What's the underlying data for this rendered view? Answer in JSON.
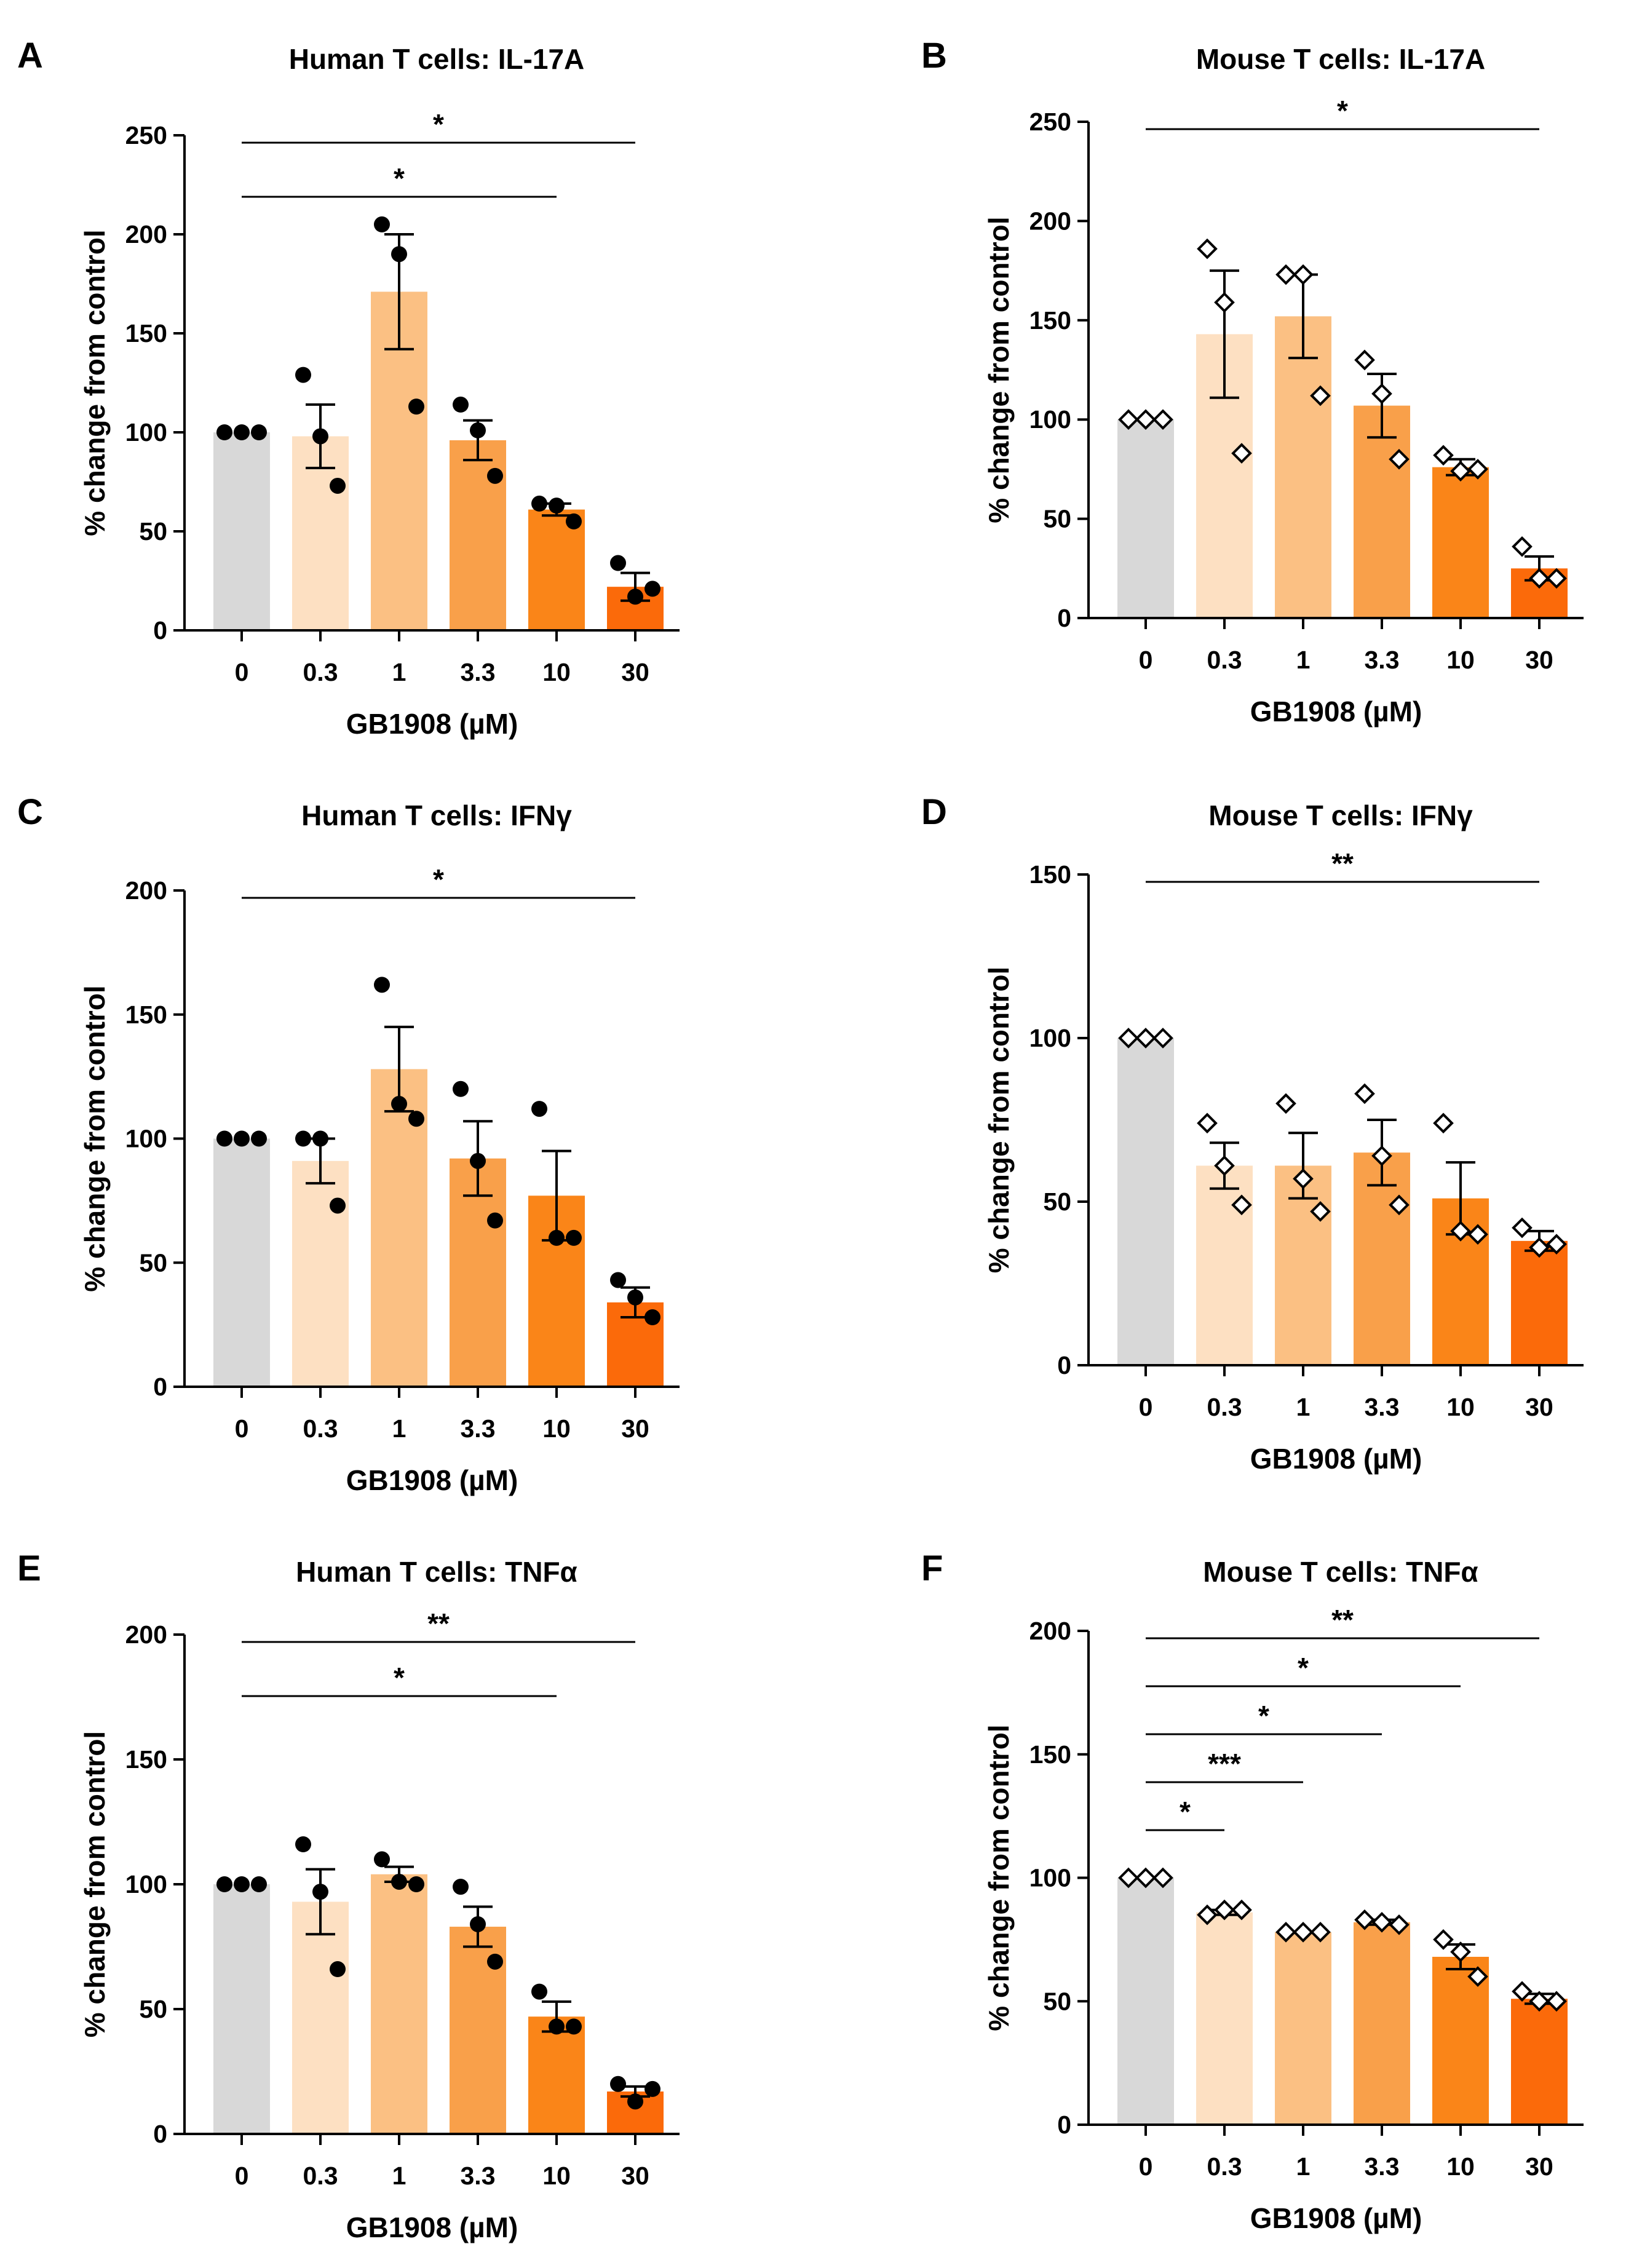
{
  "figure": {
    "xlabel": "GB1908 (µM)",
    "ylabel": "% change from control",
    "colors": [
      "#d8d8d8",
      "#fde0c2",
      "#fbc083",
      "#f9a04a",
      "#fa8518",
      "#fb6a0a"
    ],
    "marker_colors": {
      "filled": "#000000",
      "open_fill": "#ffffff",
      "open_stroke": "#000000"
    }
  },
  "chart_data": [
    {
      "letter": "A",
      "type": "bar",
      "title": "Human T cells: IL-17A",
      "xlabel": "GB1908 (µM)",
      "ylabel": "% change from control",
      "categories": [
        "0",
        "0.3",
        "1",
        "3.3",
        "10",
        "30"
      ],
      "values": [
        100,
        98,
        171,
        96,
        61,
        22
      ],
      "sem": [
        0,
        16,
        29,
        10,
        3,
        7
      ],
      "points": [
        [
          100,
          100,
          100
        ],
        [
          129,
          98,
          73
        ],
        [
          205,
          190,
          113
        ],
        [
          114,
          101,
          78
        ],
        [
          64,
          63,
          55
        ],
        [
          34,
          17,
          21
        ]
      ],
      "marker": "circle",
      "ylim": [
        0,
        250
      ],
      "yticks": [
        0,
        50,
        100,
        150,
        200,
        250
      ],
      "significance": [
        {
          "from": 0,
          "to": 5,
          "label": "*"
        },
        {
          "from": 0,
          "to": 4,
          "label": "*"
        }
      ]
    },
    {
      "letter": "B",
      "type": "bar",
      "title": "Mouse T cells: IL-17A",
      "xlabel": "GB1908 (µM)",
      "ylabel": "% change from control",
      "categories": [
        "0",
        "0.3",
        "1",
        "3.3",
        "10",
        "30"
      ],
      "values": [
        100,
        143,
        152,
        107,
        76,
        25
      ],
      "sem": [
        0,
        32,
        21,
        16,
        4,
        6
      ],
      "points": [
        [
          100,
          100,
          100
        ],
        [
          186,
          159,
          83
        ],
        [
          173,
          173,
          112
        ],
        [
          130,
          113,
          80
        ],
        [
          82,
          74,
          75
        ],
        [
          36,
          20,
          20
        ]
      ],
      "marker": "diamond",
      "ylim": [
        0,
        250
      ],
      "yticks": [
        0,
        50,
        100,
        150,
        200,
        250
      ],
      "significance": [
        {
          "from": 0,
          "to": 5,
          "label": "*"
        }
      ]
    },
    {
      "letter": "C",
      "type": "bar",
      "title": "Human T cells: IFNγ",
      "xlabel": "GB1908 (µM)",
      "ylabel": "% change from control",
      "categories": [
        "0",
        "0.3",
        "1",
        "3.3",
        "10",
        "30"
      ],
      "values": [
        100,
        91,
        128,
        92,
        77,
        34
      ],
      "sem": [
        0,
        9,
        17,
        15,
        18,
        6
      ],
      "points": [
        [
          100,
          100,
          100
        ],
        [
          100,
          100,
          73
        ],
        [
          162,
          114,
          108
        ],
        [
          120,
          91,
          67
        ],
        [
          112,
          60,
          60
        ],
        [
          43,
          36,
          28
        ]
      ],
      "marker": "circle",
      "ylim": [
        0,
        200
      ],
      "yticks": [
        0,
        50,
        100,
        150,
        200
      ],
      "significance": [
        {
          "from": 0,
          "to": 5,
          "label": "*"
        }
      ]
    },
    {
      "letter": "D",
      "type": "bar",
      "title": "Mouse T cells: IFNγ",
      "xlabel": "GB1908 (µM)",
      "ylabel": "% change from control",
      "categories": [
        "0",
        "0.3",
        "1",
        "3.3",
        "10",
        "30"
      ],
      "values": [
        100,
        61,
        61,
        65,
        51,
        38
      ],
      "sem": [
        0,
        7,
        10,
        10,
        11,
        3
      ],
      "points": [
        [
          100,
          100,
          100
        ],
        [
          74,
          61,
          49
        ],
        [
          80,
          57,
          47
        ],
        [
          83,
          64,
          49
        ],
        [
          74,
          41,
          40
        ],
        [
          42,
          36,
          37
        ]
      ],
      "marker": "diamond",
      "ylim": [
        0,
        150
      ],
      "yticks": [
        0,
        50,
        100,
        150
      ],
      "significance": [
        {
          "from": 0,
          "to": 5,
          "label": "**"
        }
      ]
    },
    {
      "letter": "E",
      "type": "bar",
      "title": "Human T cells: TNFα",
      "xlabel": "GB1908 (µM)",
      "ylabel": "% change from control",
      "categories": [
        "0",
        "0.3",
        "1",
        "3.3",
        "10",
        "30"
      ],
      "values": [
        100,
        93,
        104,
        83,
        47,
        17
      ],
      "sem": [
        0,
        13,
        3,
        8,
        6,
        2
      ],
      "points": [
        [
          100,
          100,
          100
        ],
        [
          116,
          97,
          66
        ],
        [
          110,
          101,
          100
        ],
        [
          99,
          84,
          69
        ],
        [
          57,
          43,
          43
        ],
        [
          20,
          13,
          18
        ]
      ],
      "marker": "circle",
      "ylim": [
        0,
        200
      ],
      "yticks": [
        0,
        50,
        100,
        150,
        200
      ],
      "significance": [
        {
          "from": 0,
          "to": 5,
          "label": "**"
        },
        {
          "from": 0,
          "to": 4,
          "label": "*"
        }
      ]
    },
    {
      "letter": "F",
      "type": "bar",
      "title": "Mouse T cells: TNFα",
      "xlabel": "GB1908 (µM)",
      "ylabel": "% change from control",
      "categories": [
        "0",
        "0.3",
        "1",
        "3.3",
        "10",
        "30"
      ],
      "values": [
        100,
        86,
        78,
        82,
        68,
        51
      ],
      "sem": [
        0,
        1,
        0,
        1,
        5,
        2
      ],
      "points": [
        [
          100,
          100,
          100
        ],
        [
          85,
          87,
          87
        ],
        [
          78,
          78,
          78
        ],
        [
          83,
          82,
          81
        ],
        [
          75,
          70,
          60
        ],
        [
          54,
          50,
          50
        ]
      ],
      "marker": "diamond",
      "ylim": [
        0,
        200
      ],
      "yticks": [
        0,
        50,
        100,
        150,
        200
      ],
      "significance": [
        {
          "from": 0,
          "to": 5,
          "label": "**"
        },
        {
          "from": 0,
          "to": 4,
          "label": "*"
        },
        {
          "from": 0,
          "to": 3,
          "label": "*"
        },
        {
          "from": 0,
          "to": 2,
          "label": "***"
        },
        {
          "from": 0,
          "to": 1,
          "label": "*"
        }
      ]
    }
  ]
}
